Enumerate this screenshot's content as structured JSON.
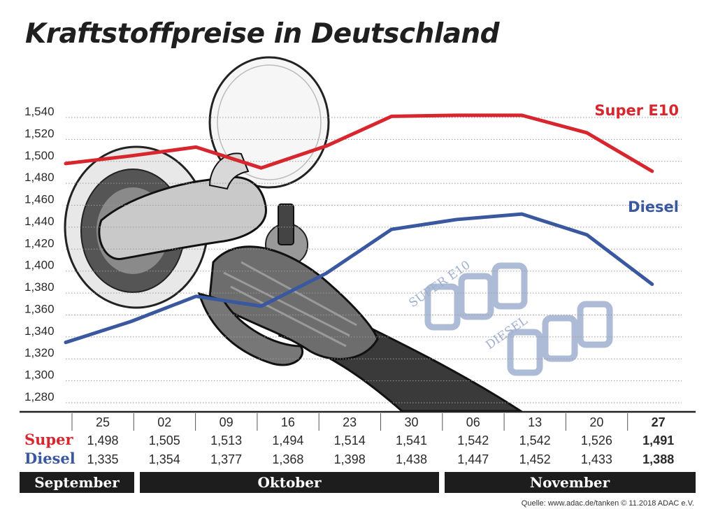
{
  "chart_data": {
    "type": "line",
    "title": "Kraftstoffpreise in Deutschland",
    "yticks": [
      "1,540",
      "1,520",
      "1,500",
      "1,480",
      "1,460",
      "1,440",
      "1,420",
      "1,400",
      "1,380",
      "1,360",
      "1,340",
      "1,320",
      "1,300",
      "1,280"
    ],
    "ylim": [
      1.28,
      1.54
    ],
    "x": [
      "25",
      "02",
      "09",
      "16",
      "23",
      "30",
      "06",
      "13",
      "20",
      "27"
    ],
    "series": [
      {
        "name": "Super E10",
        "row_label": "Super",
        "color": "#d7262e",
        "values": [
          1.498,
          1.505,
          1.513,
          1.494,
          1.514,
          1.541,
          1.542,
          1.542,
          1.526,
          1.491
        ],
        "value_labels": [
          "1,498",
          "1,505",
          "1,513",
          "1,494",
          "1,514",
          "1,541",
          "1,542",
          "1,542",
          "1,526",
          "1,491"
        ]
      },
      {
        "name": "Diesel",
        "row_label": "Diesel",
        "color": "#3a58a0",
        "values": [
          1.335,
          1.354,
          1.377,
          1.368,
          1.398,
          1.438,
          1.447,
          1.452,
          1.433,
          1.388
        ],
        "value_labels": [
          "1,335",
          "1,354",
          "1,377",
          "1,368",
          "1,398",
          "1,438",
          "1,447",
          "1,452",
          "1,433",
          "1,388"
        ]
      }
    ],
    "highlight_last": true,
    "months": [
      "September",
      "Oktober",
      "November"
    ],
    "grid": true
  },
  "source": "Quelle: www.adac.de/tanken   © 11.2018  ADAC e.V."
}
